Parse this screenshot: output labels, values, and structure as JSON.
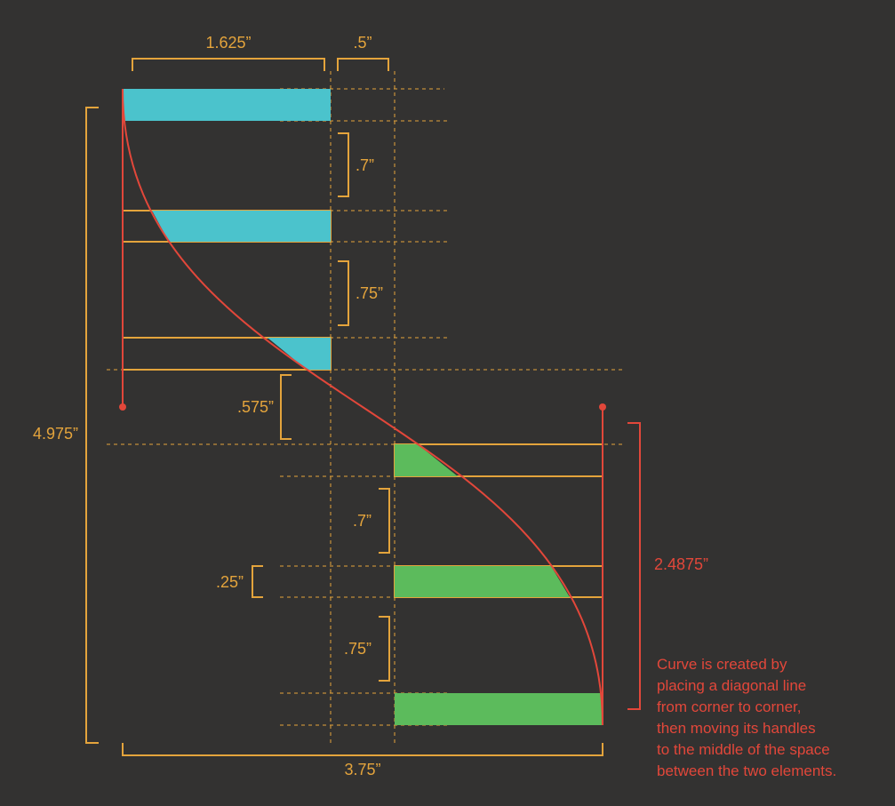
{
  "colors": {
    "background": "#333231",
    "dimension": "#E4A43C",
    "curve": "#E2473A",
    "top_fill": "#4BC3CC",
    "bottom_fill": "#5CBB5C"
  },
  "dimensions": {
    "top_width": "1.625”",
    "top_gap": ".5”",
    "top_spacing_1": ".7”",
    "top_spacing_2": ".75”",
    "middle_gap": ".575”",
    "bottom_spacing_1": ".7”",
    "bar_height": ".25”",
    "bottom_spacing_2": ".75”",
    "total_height": "4.975”",
    "half_height": "2.4875”",
    "total_width": "3.75”"
  },
  "note": {
    "lines": [
      "Curve is created by",
      "placing a diagonal line",
      "from corner to corner,",
      "then moving its handles",
      "to the middle of the space",
      "between the two elements."
    ]
  }
}
